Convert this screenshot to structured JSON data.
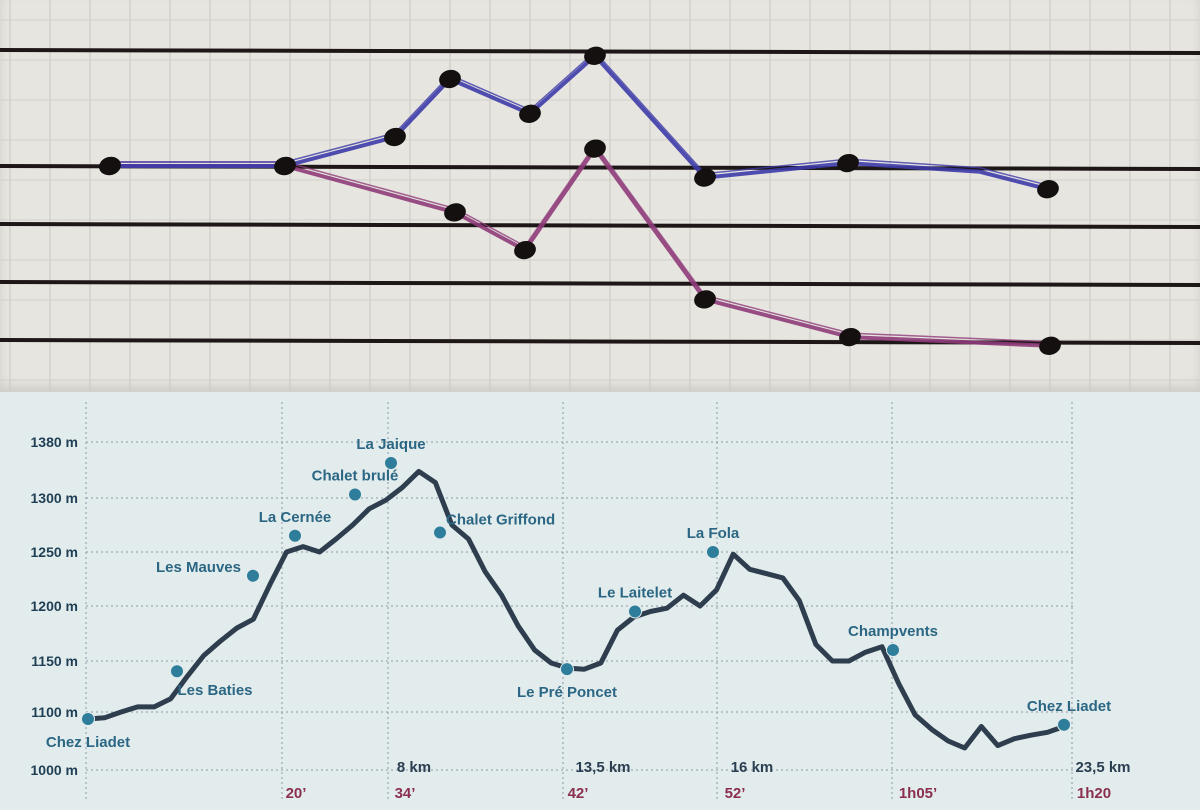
{
  "colors": {
    "sketch_upper_line": "#3d3ba8",
    "sketch_lower_line": "#8e3b7a",
    "profile_line": "#2e3e4f",
    "marker": "#2e7d9a",
    "label_blue": "#2b6784",
    "time_label": "#8a2f4f"
  },
  "chart_data": [
    {
      "type": "line",
      "grid": true,
      "series": [
        {
          "values": [
            2,
            2,
            2.5,
            3.5,
            2.9,
            3.9,
            1.8,
            2.05,
            1.9,
            1.6
          ]
        },
        {
          "values": [
            2,
            2,
            1.2,
            0.55,
            2.3,
            -0.3,
            -0.95,
            -1.1
          ]
        }
      ]
    },
    {
      "type": "line",
      "grid": true,
      "yticks": [
        {
          "v": 1000,
          "label": "1000 m"
        },
        {
          "v": 1100,
          "label": "1100 m"
        },
        {
          "v": 1150,
          "label": "1150 m"
        },
        {
          "v": 1200,
          "label": "1200 m"
        },
        {
          "v": 1250,
          "label": "1250 m"
        },
        {
          "v": 1300,
          "label": "1300 m"
        },
        {
          "v": 1380,
          "label": "1380 m"
        }
      ],
      "elevation_m": [
        1088,
        1090,
        1100,
        1105,
        1105,
        1113,
        1135,
        1155,
        1168,
        1180,
        1188,
        1220,
        1250,
        1255,
        1250,
        1262,
        1275,
        1290,
        1298,
        1315,
        1338,
        1322,
        1275,
        1262,
        1232,
        1210,
        1182,
        1160,
        1148,
        1143,
        1142,
        1148,
        1178,
        1190,
        1195,
        1198,
        1210,
        1200,
        1215,
        1248,
        1234,
        1230,
        1226,
        1205,
        1165,
        1150,
        1150,
        1158,
        1163,
        1128,
        1095,
        1070,
        1050,
        1038,
        1075,
        1042,
        1054,
        1060,
        1065,
        1075
      ],
      "waypoints": [
        {
          "name": "Chez Liadet",
          "label_pos": "below",
          "elevation_m": 1088
        },
        {
          "name": "Les Baties",
          "label_pos": "below",
          "elevation_m": 1140
        },
        {
          "name": "Les Mauves",
          "label_pos": "left",
          "elevation_m": 1228
        },
        {
          "name": "La Cernée",
          "label_pos": "above",
          "elevation_m": 1265
        },
        {
          "name": "Chalet brulé",
          "label_pos": "above",
          "elevation_m": 1305
        },
        {
          "name": "La Jaique",
          "label_pos": "above",
          "elevation_m": 1350
        },
        {
          "name": "Chalet Griffond",
          "label_pos": "right",
          "elevation_m": 1268
        },
        {
          "name": "Le Pré Poncet",
          "label_pos": "below",
          "elevation_m": 1142
        },
        {
          "name": "Le Laitelet",
          "label_pos": "above",
          "elevation_m": 1195
        },
        {
          "name": "La Fola",
          "label_pos": "above",
          "elevation_m": 1250
        },
        {
          "name": "Champvents",
          "label_pos": "above",
          "elevation_m": 1160
        },
        {
          "name": "Chez Liadet",
          "label_pos": "above",
          "elevation_m": 1078
        }
      ],
      "distance_labels": [
        "8 km",
        "13,5 km",
        "16 km",
        "23,5 km"
      ],
      "time_labels": [
        "20’",
        "34’",
        "42’",
        "52’",
        "1h05’",
        "1h20"
      ]
    }
  ]
}
